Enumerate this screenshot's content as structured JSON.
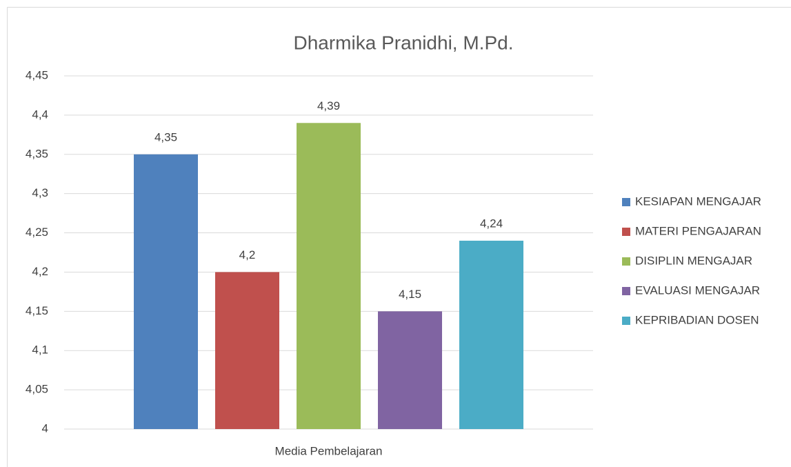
{
  "chart_data": {
    "type": "bar",
    "title": "Dharmika Pranidhi, M.Pd.",
    "categories": [
      "Media Pembelajaran"
    ],
    "series": [
      {
        "name": "KESIAPAN MENGAJAR",
        "color": "#4f81bd",
        "values": [
          4.35
        ],
        "value_labels": [
          "4,35"
        ]
      },
      {
        "name": "MATERI PENGAJARAN",
        "color": "#c0504d",
        "values": [
          4.2
        ],
        "value_labels": [
          "4,2"
        ]
      },
      {
        "name": "DISIPLIN MENGAJAR",
        "color": "#9bbb59",
        "values": [
          4.39
        ],
        "value_labels": [
          "4,39"
        ]
      },
      {
        "name": "EVALUASI MENGAJAR",
        "color": "#8064a2",
        "values": [
          4.15
        ],
        "value_labels": [
          "4,15"
        ]
      },
      {
        "name": "KEPRIBADIAN DOSEN",
        "color": "#4bacc6",
        "values": [
          4.24
        ],
        "value_labels": [
          "4,24"
        ]
      }
    ],
    "ylim": [
      4,
      4.45
    ],
    "yticks": [
      4,
      {
        "value": 4.05,
        "label": "4,05"
      },
      {
        "value": 4.1,
        "label": "4,1"
      },
      {
        "value": 4.15,
        "label": "4,15"
      },
      {
        "value": 4.2,
        "label": "4,2"
      },
      {
        "value": 4.25,
        "label": "4,25"
      },
      {
        "value": 4.3,
        "label": "4,3"
      },
      {
        "value": 4.35,
        "label": "4,35"
      },
      {
        "value": 4.4,
        "label": "4,4"
      },
      {
        "value": 4.45,
        "label": "4,45"
      }
    ],
    "grid": true,
    "legend": "right"
  }
}
